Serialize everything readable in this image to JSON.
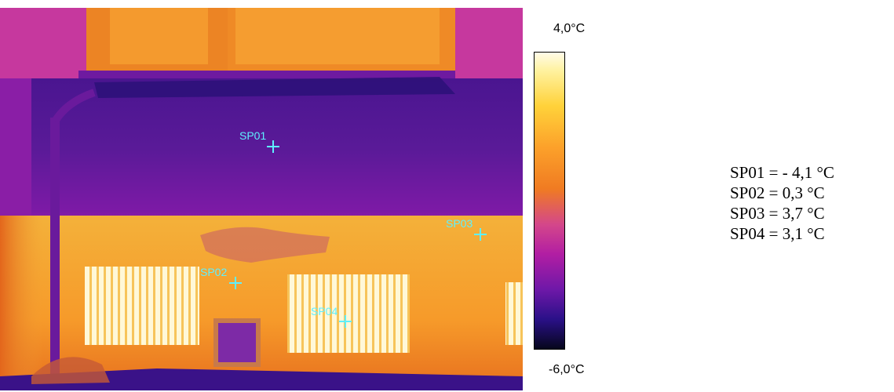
{
  "thermogram": {
    "spots": [
      {
        "label": "SP01"
      },
      {
        "label": "SP02"
      },
      {
        "label": "SP03"
      },
      {
        "label": "SP04"
      }
    ]
  },
  "scale": {
    "max": "4,0°C",
    "min": "-6,0°C"
  },
  "readings": [
    "SP01 = - 4,1 °C",
    "SP02 = 0,3 °C",
    "SP03 = 3,7 °C",
    "SP04 = 3,1 °C"
  ],
  "palette": {
    "hot": "#fff2a0",
    "warm": "#f07b22",
    "mid": "#b21ea3",
    "cold": "#2a1088",
    "marker": "#5ff0ff"
  }
}
